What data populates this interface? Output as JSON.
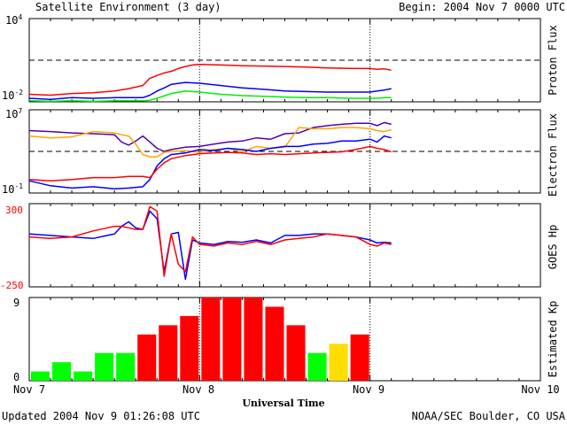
{
  "header": {
    "title": "Satellite Environment (3 day)",
    "begin": "Begin:  2004 Nov 7 0000 UTC"
  },
  "footer": {
    "updated": "Updated 2004 Nov  9 01:26:08 UTC",
    "credit": "NOAA/SEC Boulder, CO USA"
  },
  "x_axis": {
    "label": "Universal Time",
    "ticks": [
      "Nov 7",
      "Nov 8",
      "Nov 9",
      "Nov 10"
    ]
  },
  "colors": {
    "red": "#ff0000",
    "blue": "#0000ff",
    "green": "#00ee00",
    "purple": "#5500aa",
    "orange": "#ffa500",
    "kp_low": "#00ff00",
    "kp_mid": "#ffdd00",
    "kp_high": "#ff0000"
  },
  "chart_data": [
    {
      "type": "line",
      "name": "proton_flux",
      "ylabel": "Proton Flux",
      "yscale": "log",
      "ylim": [
        0.01,
        10000
      ],
      "y_tick_labels": {
        "top_base": "10",
        "top_exp": "4",
        "bottom_base": "10",
        "bottom_exp": "-2"
      },
      "threshold": 10,
      "x_unit": "hours since Nov 7 0000 UTC",
      "series": [
        {
          "color": "red",
          "x": [
            0,
            3,
            6,
            9,
            12,
            14,
            16,
            17,
            18,
            19,
            20,
            21,
            22,
            23,
            24,
            27,
            30,
            33,
            36,
            39,
            42,
            45,
            48,
            49,
            50,
            51
          ],
          "y": [
            0.035,
            0.03,
            0.04,
            0.045,
            0.06,
            0.09,
            0.15,
            0.5,
            0.8,
            1.2,
            1.6,
            2.5,
            3.5,
            4.5,
            5,
            4.5,
            4,
            3.8,
            3.5,
            3.2,
            2.8,
            2.6,
            2.5,
            2.2,
            2.4,
            1.9
          ]
        },
        {
          "color": "blue",
          "x": [
            0,
            3,
            6,
            9,
            12,
            14,
            16,
            17,
            18,
            19,
            20,
            22,
            24,
            27,
            30,
            33,
            36,
            39,
            42,
            45,
            48,
            49,
            50,
            51
          ],
          "y": [
            0.018,
            0.015,
            0.02,
            0.018,
            0.02,
            0.02,
            0.02,
            0.03,
            0.06,
            0.1,
            0.18,
            0.25,
            0.22,
            0.15,
            0.1,
            0.08,
            0.06,
            0.055,
            0.05,
            0.05,
            0.05,
            0.06,
            0.07,
            0.09
          ]
        },
        {
          "color": "green",
          "x": [
            0,
            3,
            6,
            9,
            12,
            14,
            16,
            17,
            18,
            20,
            22,
            24,
            27,
            30,
            33,
            36,
            39,
            42,
            45,
            48,
            49,
            50,
            51
          ],
          "y": [
            0.012,
            0.011,
            0.012,
            0.011,
            0.012,
            0.012,
            0.012,
            0.013,
            0.018,
            0.04,
            0.06,
            0.05,
            0.035,
            0.028,
            0.025,
            0.022,
            0.02,
            0.02,
            0.018,
            0.018,
            0.018,
            0.02,
            0.02
          ]
        }
      ]
    },
    {
      "type": "line",
      "name": "electron_flux",
      "ylabel": "Electron Flux",
      "yscale": "log",
      "ylim": [
        0.1,
        10000000
      ],
      "y_tick_labels": {
        "top_base": "10",
        "top_exp": "7",
        "bottom_base": "10",
        "bottom_exp": "-1"
      },
      "threshold": 1000,
      "x_unit": "hours since Nov 7 0000 UTC",
      "series": [
        {
          "color": "purple",
          "x": [
            0,
            3,
            6,
            9,
            12,
            13,
            14,
            15,
            16,
            17,
            18,
            19,
            20,
            22,
            24,
            26,
            28,
            30,
            32,
            34,
            36,
            38,
            40,
            42,
            44,
            46,
            48,
            49,
            50,
            51
          ],
          "y": [
            100000,
            80000,
            60000,
            50000,
            40000,
            8000,
            4000,
            10000,
            30000,
            8000,
            2000,
            1000,
            1500,
            2500,
            3000,
            5000,
            8000,
            10000,
            20000,
            15000,
            50000,
            60000,
            200000,
            300000,
            400000,
            500000,
            500000,
            300000,
            600000,
            400000
          ]
        },
        {
          "color": "orange",
          "x": [
            0,
            3,
            6,
            9,
            12,
            13,
            14,
            15,
            16,
            17,
            18,
            19,
            20,
            22,
            24,
            26,
            28,
            30,
            32,
            34,
            36,
            38,
            40,
            42,
            44,
            46,
            48,
            49,
            50,
            51
          ],
          "y": [
            30000,
            20000,
            25000,
            80000,
            60000,
            40000,
            30000,
            5000,
            500,
            300,
            300,
            800,
            1000,
            1200,
            800,
            1500,
            2000,
            900,
            3000,
            2000,
            2500,
            200000,
            150000,
            150000,
            200000,
            200000,
            150000,
            100000,
            80000,
            120000
          ]
        },
        {
          "color": "blue",
          "x": [
            0,
            3,
            6,
            9,
            12,
            14,
            16,
            17,
            18,
            19,
            20,
            22,
            24,
            26,
            28,
            30,
            32,
            34,
            36,
            38,
            40,
            42,
            44,
            46,
            48,
            49,
            50,
            51
          ],
          "y": [
            1.5,
            0.5,
            0.3,
            0.4,
            0.25,
            0.3,
            0.4,
            2,
            40,
            200,
            500,
            700,
            1500,
            1200,
            2000,
            1500,
            1000,
            2000,
            3000,
            3000,
            5000,
            6000,
            10000,
            10000,
            15000,
            8000,
            30000,
            20000
          ]
        },
        {
          "color": "red",
          "x": [
            0,
            3,
            6,
            9,
            12,
            14,
            16,
            17,
            18,
            19,
            20,
            22,
            24,
            26,
            28,
            30,
            32,
            34,
            36,
            38,
            40,
            42,
            44,
            46,
            48,
            49,
            50,
            51
          ],
          "y": [
            2,
            1.5,
            2,
            3,
            3,
            4,
            4,
            3,
            20,
            80,
            200,
            400,
            600,
            700,
            800,
            700,
            500,
            600,
            500,
            600,
            700,
            800,
            900,
            1500,
            3000,
            2000,
            1500,
            900
          ]
        }
      ]
    },
    {
      "type": "line",
      "name": "goes_hp",
      "ylabel": "GOES Hp",
      "yscale": "linear",
      "ylim": [
        -250,
        300
      ],
      "y_tick_labels": {
        "top": "300",
        "bottom": "-250"
      },
      "x_unit": "hours since Nov 7 0000 UTC",
      "series": [
        {
          "color": "blue",
          "x": [
            0,
            3,
            6,
            9,
            12,
            13,
            14,
            15,
            16,
            17,
            18,
            19,
            20,
            21,
            22,
            23,
            24,
            26,
            28,
            30,
            32,
            34,
            36,
            38,
            40,
            42,
            44,
            46,
            48,
            49,
            50,
            51
          ],
          "y": [
            100,
            90,
            80,
            70,
            100,
            150,
            180,
            140,
            130,
            250,
            200,
            -150,
            100,
            110,
            -200,
            60,
            40,
            30,
            50,
            45,
            60,
            40,
            90,
            90,
            100,
            100,
            90,
            80,
            60,
            40,
            45,
            40
          ]
        },
        {
          "color": "red",
          "x": [
            0,
            3,
            6,
            9,
            12,
            13,
            14,
            15,
            16,
            17,
            18,
            19,
            20,
            21,
            22,
            23,
            24,
            26,
            28,
            30,
            32,
            34,
            36,
            38,
            40,
            42,
            44,
            46,
            48,
            49,
            50,
            51
          ],
          "y": [
            80,
            70,
            80,
            120,
            150,
            150,
            140,
            130,
            130,
            280,
            250,
            -180,
            100,
            -100,
            -150,
            80,
            30,
            20,
            40,
            30,
            50,
            30,
            60,
            70,
            80,
            100,
            90,
            80,
            30,
            20,
            40,
            30
          ]
        }
      ]
    },
    {
      "type": "bar",
      "name": "estimated_kp",
      "ylabel": "Estimated Kp",
      "ylim": [
        0,
        9
      ],
      "y_tick_labels": {
        "top": "9",
        "bottom": "0"
      },
      "bar_hours": 3,
      "values": [
        1,
        2,
        1,
        3,
        3,
        5,
        6,
        7,
        9,
        9,
        9,
        8,
        6,
        3,
        4,
        5
      ],
      "colors": [
        "kp_low",
        "kp_low",
        "kp_low",
        "kp_low",
        "kp_low",
        "kp_high",
        "kp_high",
        "kp_high",
        "kp_high",
        "kp_high",
        "kp_high",
        "kp_high",
        "kp_high",
        "kp_low",
        "kp_mid",
        "kp_high"
      ]
    }
  ]
}
